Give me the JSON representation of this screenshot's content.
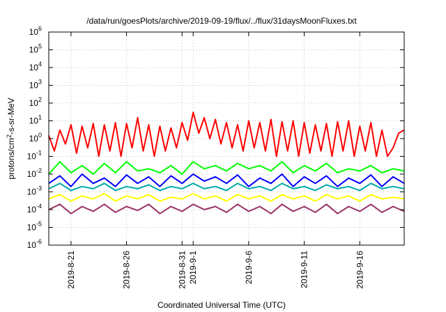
{
  "chart_data": {
    "type": "line",
    "title": "/data/run/goesPlots/archive/2019-09-19/flux/../flux/31daysMoonFluxes.txt",
    "xlabel": "Coordinated Universal Time (UTC)",
    "ylabel": {
      "base": "protons/cm",
      "sup": "2",
      "rest": "-s-sr-MeV"
    },
    "x_range": [
      "2019-08-19",
      "2019-09-20"
    ],
    "y_scale": "log",
    "ylim": [
      1e-06,
      1000000.0
    ],
    "grid": true,
    "y_ticks": [
      {
        "value": 1e-06,
        "base": "10",
        "exp": "-6"
      },
      {
        "value": 1e-05,
        "base": "10",
        "exp": "-5"
      },
      {
        "value": 0.0001,
        "base": "10",
        "exp": "-4"
      },
      {
        "value": 0.001,
        "base": "10",
        "exp": "-3"
      },
      {
        "value": 0.01,
        "base": "10",
        "exp": "-2"
      },
      {
        "value": 0.1,
        "base": "10",
        "exp": "-1"
      },
      {
        "value": 1.0,
        "base": "10",
        "exp": "0"
      },
      {
        "value": 10.0,
        "base": "10",
        "exp": "1"
      },
      {
        "value": 100.0,
        "base": "10",
        "exp": "2"
      },
      {
        "value": 1000.0,
        "base": "10",
        "exp": "3"
      },
      {
        "value": 10000.0,
        "base": "10",
        "exp": "4"
      },
      {
        "value": 100000.0,
        "base": "10",
        "exp": "5"
      },
      {
        "value": 1000000.0,
        "base": "10",
        "exp": "6"
      }
    ],
    "x_ticks": [
      {
        "date": "2019-08-21",
        "label": "2019-8-21"
      },
      {
        "date": "2019-08-26",
        "label": "2019-8-26"
      },
      {
        "date": "2019-08-31",
        "label": "2019-8-31"
      },
      {
        "date": "2019-09-01",
        "label": "2019-9-1"
      },
      {
        "date": "2019-09-06",
        "label": "2019-9-6"
      },
      {
        "date": "2019-09-11",
        "label": "2019-9-11"
      },
      {
        "date": "2019-09-16",
        "label": "2019-9-16"
      }
    ],
    "series": [
      {
        "color": "#ff0000",
        "x": [
          "2019-08-19",
          "2019-08-19T12:00",
          "2019-08-20",
          "2019-08-20T12:00",
          "2019-08-21",
          "2019-08-21T12:00",
          "2019-08-22",
          "2019-08-22T12:00",
          "2019-08-23",
          "2019-08-23T12:00",
          "2019-08-24",
          "2019-08-24T12:00",
          "2019-08-25",
          "2019-08-25T12:00",
          "2019-08-26",
          "2019-08-26T12:00",
          "2019-08-27",
          "2019-08-27T12:00",
          "2019-08-28",
          "2019-08-28T12:00",
          "2019-08-29",
          "2019-08-29T12:00",
          "2019-08-30",
          "2019-08-30T12:00",
          "2019-08-31",
          "2019-08-31T12:00",
          "2019-09-01",
          "2019-09-01T12:00",
          "2019-09-02",
          "2019-09-02T12:00",
          "2019-09-03",
          "2019-09-03T12:00",
          "2019-09-04",
          "2019-09-04T12:00",
          "2019-09-05",
          "2019-09-05T12:00",
          "2019-09-06",
          "2019-09-06T12:00",
          "2019-09-07",
          "2019-09-07T12:00",
          "2019-09-08",
          "2019-09-08T12:00",
          "2019-09-09",
          "2019-09-09T12:00",
          "2019-09-10",
          "2019-09-10T12:00",
          "2019-09-11",
          "2019-09-11T12:00",
          "2019-09-12",
          "2019-09-12T12:00",
          "2019-09-13",
          "2019-09-13T12:00",
          "2019-09-14",
          "2019-09-14T12:00",
          "2019-09-15",
          "2019-09-15T12:00",
          "2019-09-16",
          "2019-09-16T12:00",
          "2019-09-17",
          "2019-09-17T12:00",
          "2019-09-18",
          "2019-09-18T12:00",
          "2019-09-19",
          "2019-09-19T12:00",
          "2019-09-20"
        ],
        "values": [
          1.5,
          0.2,
          3,
          0.5,
          6,
          0.15,
          5,
          0.3,
          7,
          0.1,
          6,
          0.2,
          8,
          0.1,
          7,
          0.3,
          15,
          0.2,
          6,
          0.1,
          5,
          0.2,
          4,
          0.3,
          8,
          0.8,
          30,
          2,
          15,
          1,
          12,
          0.5,
          8,
          0.3,
          6,
          0.2,
          10,
          0.3,
          8,
          0.2,
          12,
          0.1,
          9,
          0.2,
          10,
          0.1,
          8,
          0.15,
          6,
          0.2,
          7,
          0.1,
          9,
          0.2,
          10,
          0.1,
          5,
          0.2,
          8,
          0.1,
          3,
          0.1,
          0.3,
          2,
          3
        ]
      },
      {
        "color": "#00ff00",
        "x": [
          "2019-08-19",
          "2019-08-20",
          "2019-08-21",
          "2019-08-22",
          "2019-08-23",
          "2019-08-24",
          "2019-08-25",
          "2019-08-26",
          "2019-08-27",
          "2019-08-28",
          "2019-08-29",
          "2019-08-30",
          "2019-08-31",
          "2019-09-01",
          "2019-09-02",
          "2019-09-03",
          "2019-09-04",
          "2019-09-05",
          "2019-09-06",
          "2019-09-07",
          "2019-09-08",
          "2019-09-09",
          "2019-09-10",
          "2019-09-11",
          "2019-09-12",
          "2019-09-13",
          "2019-09-14",
          "2019-09-15",
          "2019-09-16",
          "2019-09-17",
          "2019-09-18",
          "2019-09-19",
          "2019-09-20"
        ],
        "values": [
          0.01,
          0.05,
          0.012,
          0.03,
          0.01,
          0.04,
          0.012,
          0.05,
          0.015,
          0.02,
          0.012,
          0.03,
          0.01,
          0.05,
          0.02,
          0.03,
          0.015,
          0.04,
          0.02,
          0.03,
          0.015,
          0.05,
          0.012,
          0.03,
          0.015,
          0.04,
          0.012,
          0.02,
          0.015,
          0.03,
          0.012,
          0.02,
          0.015
        ]
      },
      {
        "color": "#00aaaa",
        "x": [
          "2019-08-19",
          "2019-08-20",
          "2019-08-21",
          "2019-08-22",
          "2019-08-23",
          "2019-08-24",
          "2019-08-25",
          "2019-08-26",
          "2019-08-27",
          "2019-08-28",
          "2019-08-29",
          "2019-08-30",
          "2019-08-31",
          "2019-09-01",
          "2019-09-02",
          "2019-09-03",
          "2019-09-04",
          "2019-09-05",
          "2019-09-06",
          "2019-09-07",
          "2019-09-08",
          "2019-09-09",
          "2019-09-10",
          "2019-09-11",
          "2019-09-12",
          "2019-09-13",
          "2019-09-14",
          "2019-09-15",
          "2019-09-16",
          "2019-09-17",
          "2019-09-18",
          "2019-09-19",
          "2019-09-20"
        ],
        "values": [
          0.0015,
          0.003,
          0.0012,
          0.002,
          0.0015,
          0.003,
          0.0012,
          0.002,
          0.0015,
          0.0025,
          0.0012,
          0.002,
          0.0015,
          0.003,
          0.0015,
          0.002,
          0.0012,
          0.003,
          0.0015,
          0.002,
          0.0012,
          0.003,
          0.0015,
          0.002,
          0.0012,
          0.0025,
          0.0015,
          0.002,
          0.0012,
          0.003,
          0.0015,
          0.002,
          0.0015
        ]
      },
      {
        "color": "#0000ff",
        "x": [
          "2019-08-19",
          "2019-08-20",
          "2019-08-21",
          "2019-08-22",
          "2019-08-23",
          "2019-08-24",
          "2019-08-25",
          "2019-08-26",
          "2019-08-27",
          "2019-08-28",
          "2019-08-29",
          "2019-08-30",
          "2019-08-31",
          "2019-09-01",
          "2019-09-02",
          "2019-09-03",
          "2019-09-04",
          "2019-09-05",
          "2019-09-06",
          "2019-09-07",
          "2019-09-08",
          "2019-09-09",
          "2019-09-10",
          "2019-09-11",
          "2019-09-12",
          "2019-09-13",
          "2019-09-14",
          "2019-09-15",
          "2019-09-16",
          "2019-09-17",
          "2019-09-18",
          "2019-09-19",
          "2019-09-20"
        ],
        "values": [
          0.003,
          0.008,
          0.002,
          0.01,
          0.003,
          0.006,
          0.002,
          0.009,
          0.003,
          0.007,
          0.002,
          0.008,
          0.003,
          0.01,
          0.004,
          0.007,
          0.003,
          0.009,
          0.002,
          0.006,
          0.003,
          0.01,
          0.002,
          0.007,
          0.003,
          0.008,
          0.002,
          0.006,
          0.003,
          0.009,
          0.002,
          0.007,
          0.003
        ]
      },
      {
        "color": "#ffff00",
        "x": [
          "2019-08-19",
          "2019-08-20",
          "2019-08-21",
          "2019-08-22",
          "2019-08-23",
          "2019-08-24",
          "2019-08-25",
          "2019-08-26",
          "2019-08-27",
          "2019-08-28",
          "2019-08-29",
          "2019-08-30",
          "2019-08-31",
          "2019-09-01",
          "2019-09-02",
          "2019-09-03",
          "2019-09-04",
          "2019-09-05",
          "2019-09-06",
          "2019-09-07",
          "2019-09-08",
          "2019-09-09",
          "2019-09-10",
          "2019-09-11",
          "2019-09-12",
          "2019-09-13",
          "2019-09-14",
          "2019-09-15",
          "2019-09-16",
          "2019-09-17",
          "2019-09-18",
          "2019-09-19",
          "2019-09-20"
        ],
        "values": [
          0.0004,
          0.0007,
          0.0003,
          0.0006,
          0.0004,
          0.0008,
          0.0003,
          0.0006,
          0.0004,
          0.0007,
          0.0003,
          0.0005,
          0.0004,
          0.0008,
          0.0004,
          0.0006,
          0.0003,
          0.0007,
          0.0004,
          0.0006,
          0.0003,
          0.0007,
          0.0004,
          0.0006,
          0.0003,
          0.0007,
          0.0004,
          0.0006,
          0.0003,
          0.0007,
          0.0004,
          0.0005,
          0.0004
        ]
      },
      {
        "color": "#993366",
        "x": [
          "2019-08-19",
          "2019-08-20",
          "2019-08-21",
          "2019-08-22",
          "2019-08-23",
          "2019-08-24",
          "2019-08-25",
          "2019-08-26",
          "2019-08-27",
          "2019-08-28",
          "2019-08-29",
          "2019-08-30",
          "2019-08-31",
          "2019-09-01",
          "2019-09-02",
          "2019-09-03",
          "2019-09-04",
          "2019-09-05",
          "2019-09-06",
          "2019-09-07",
          "2019-09-08",
          "2019-09-09",
          "2019-09-10",
          "2019-09-11",
          "2019-09-12",
          "2019-09-13",
          "2019-09-14",
          "2019-09-15",
          "2019-09-16",
          "2019-09-17",
          "2019-09-18",
          "2019-09-19",
          "2019-09-20"
        ],
        "values": [
          0.0001,
          0.0002,
          6e-05,
          0.00015,
          8e-05,
          0.0002,
          7e-05,
          0.00015,
          9e-05,
          0.0002,
          6e-05,
          0.00015,
          8e-05,
          0.0002,
          0.0001,
          0.00015,
          7e-05,
          0.0002,
          8e-05,
          0.00015,
          6e-05,
          0.0002,
          8e-05,
          0.00015,
          7e-05,
          0.0002,
          6e-05,
          0.00015,
          8e-05,
          0.0002,
          7e-05,
          0.00015,
          8e-05
        ]
      }
    ]
  }
}
